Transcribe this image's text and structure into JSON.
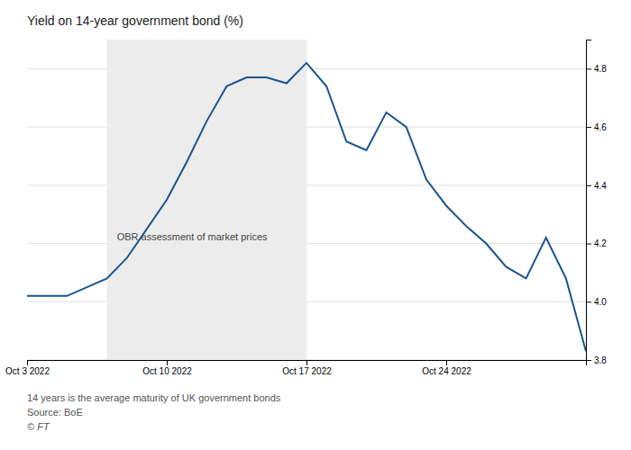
{
  "chart_data": {
    "type": "line",
    "title": "Yield on 14-year government bond (%)",
    "footnotes": [
      "14 years is the average maturity of UK government bonds",
      "Source: BoE",
      "© FT"
    ],
    "annotations": [
      {
        "text": "OBR assessment of market prices",
        "x": 4.5,
        "y": 4.22
      }
    ],
    "shaded_region": [
      4,
      14
    ],
    "x": [
      0,
      1,
      2,
      3,
      4,
      5,
      6,
      7,
      8,
      9,
      10,
      11,
      12,
      13,
      14,
      15,
      16,
      17,
      18,
      19,
      20,
      21,
      22,
      23,
      24,
      25,
      26,
      27,
      28
    ],
    "values": [
      4.02,
      4.02,
      4.02,
      4.05,
      4.08,
      4.15,
      4.25,
      4.35,
      4.48,
      4.62,
      4.74,
      4.77,
      4.77,
      4.75,
      4.82,
      4.74,
      4.55,
      4.52,
      4.65,
      4.6,
      4.42,
      4.33,
      4.26,
      4.2,
      4.12,
      4.08,
      4.22,
      4.08,
      3.83
    ],
    "color": "#1a5490",
    "xlim": [
      0,
      28
    ],
    "xticks": [
      {
        "value": 0,
        "label": "Oct 3 2022"
      },
      {
        "value": 7,
        "label": "Oct 10 2022"
      },
      {
        "value": 14,
        "label": "Oct 17 2022"
      },
      {
        "value": 21,
        "label": "Oct 24 2022"
      }
    ],
    "ylim": [
      3.8,
      4.9
    ],
    "yticks": [
      3.8,
      {
        "value": 4.0,
        "label": "4.0"
      },
      4.2,
      4.4,
      4.6,
      4.8
    ],
    "grid": true
  }
}
